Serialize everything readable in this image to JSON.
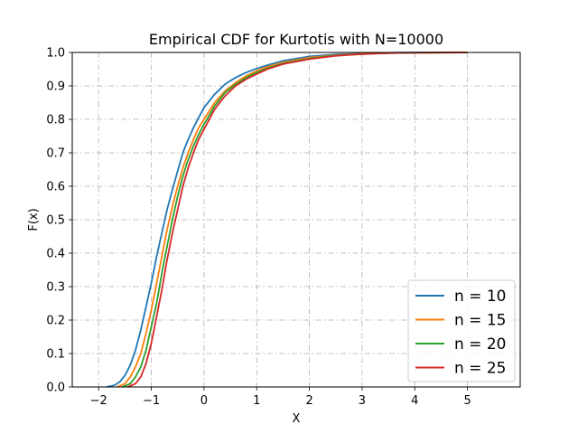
{
  "chart_data": {
    "type": "line",
    "title": "Empirical CDF for Kurtotis with N=10000",
    "xlabel": "X",
    "ylabel": "F(x)",
    "xlim": [
      -2.5,
      6.0
    ],
    "ylim": [
      0.0,
      1.0
    ],
    "xticks": [
      -2,
      -1,
      0,
      1,
      2,
      3,
      4,
      5
    ],
    "xtick_labels": [
      "−2",
      "−1",
      "0",
      "1",
      "2",
      "3",
      "4",
      "5"
    ],
    "yticks": [
      0.0,
      0.1,
      0.2,
      0.3,
      0.4,
      0.5,
      0.6,
      0.7,
      0.8,
      0.9,
      1.0
    ],
    "ytick_labels": [
      "0.0",
      "0.1",
      "0.2",
      "0.3",
      "0.4",
      "0.5",
      "0.6",
      "0.7",
      "0.8",
      "0.9",
      "1.0"
    ],
    "grid": true,
    "grid_style": "dashdot",
    "legend_position": "lower-right",
    "series": [
      {
        "name": "n = 10",
        "color": "#1f77b4",
        "x": [
          -1.85,
          -1.7,
          -1.6,
          -1.5,
          -1.4,
          -1.3,
          -1.2,
          -1.1,
          -1.0,
          -0.9,
          -0.8,
          -0.7,
          -0.6,
          -0.5,
          -0.4,
          -0.3,
          -0.2,
          -0.1,
          0.0,
          0.2,
          0.4,
          0.6,
          0.8,
          1.0,
          1.2,
          1.5,
          2.0,
          2.5,
          3.0,
          3.5,
          4.0,
          5.0
        ],
        "y": [
          0.0,
          0.005,
          0.015,
          0.035,
          0.065,
          0.11,
          0.17,
          0.24,
          0.31,
          0.39,
          0.46,
          0.53,
          0.59,
          0.645,
          0.7,
          0.74,
          0.775,
          0.805,
          0.835,
          0.875,
          0.905,
          0.925,
          0.94,
          0.952,
          0.962,
          0.975,
          0.988,
          0.994,
          0.997,
          0.999,
          1.0,
          1.0
        ]
      },
      {
        "name": "n = 15",
        "color": "#ff7f0e",
        "x": [
          -1.65,
          -1.5,
          -1.4,
          -1.3,
          -1.2,
          -1.1,
          -1.0,
          -0.9,
          -0.8,
          -0.7,
          -0.6,
          -0.5,
          -0.4,
          -0.3,
          -0.2,
          -0.1,
          0.0,
          0.2,
          0.4,
          0.6,
          0.8,
          1.0,
          1.2,
          1.5,
          2.0,
          2.5,
          3.0,
          3.5,
          4.0,
          5.0
        ],
        "y": [
          0.0,
          0.01,
          0.03,
          0.06,
          0.1,
          0.16,
          0.23,
          0.31,
          0.39,
          0.47,
          0.54,
          0.6,
          0.655,
          0.7,
          0.74,
          0.775,
          0.8,
          0.85,
          0.885,
          0.91,
          0.93,
          0.945,
          0.957,
          0.97,
          0.985,
          0.992,
          0.996,
          0.998,
          0.999,
          1.0
        ]
      },
      {
        "name": "n = 20",
        "color": "#2ca02c",
        "x": [
          -1.55,
          -1.4,
          -1.3,
          -1.2,
          -1.1,
          -1.0,
          -0.9,
          -0.8,
          -0.7,
          -0.6,
          -0.5,
          -0.4,
          -0.3,
          -0.2,
          -0.1,
          0.0,
          0.2,
          0.4,
          0.6,
          0.8,
          1.0,
          1.2,
          1.5,
          2.0,
          2.5,
          3.0,
          3.5,
          4.0,
          5.0
        ],
        "y": [
          0.0,
          0.01,
          0.03,
          0.06,
          0.11,
          0.18,
          0.25,
          0.34,
          0.42,
          0.5,
          0.57,
          0.63,
          0.68,
          0.72,
          0.755,
          0.785,
          0.84,
          0.88,
          0.905,
          0.925,
          0.94,
          0.953,
          0.967,
          0.982,
          0.991,
          0.995,
          0.998,
          0.999,
          1.0
        ]
      },
      {
        "name": "n = 25",
        "color": "#d62728",
        "x": [
          -1.45,
          -1.3,
          -1.2,
          -1.1,
          -1.0,
          -0.9,
          -0.8,
          -0.7,
          -0.6,
          -0.5,
          -0.4,
          -0.3,
          -0.2,
          -0.1,
          0.0,
          0.2,
          0.4,
          0.6,
          0.8,
          1.0,
          1.2,
          1.5,
          2.0,
          2.5,
          3.0,
          3.5,
          4.0,
          5.0
        ],
        "y": [
          0.0,
          0.01,
          0.03,
          0.07,
          0.13,
          0.21,
          0.29,
          0.38,
          0.46,
          0.53,
          0.6,
          0.655,
          0.7,
          0.74,
          0.77,
          0.83,
          0.87,
          0.9,
          0.92,
          0.935,
          0.95,
          0.965,
          0.98,
          0.99,
          0.995,
          0.998,
          0.999,
          1.0
        ]
      }
    ]
  }
}
